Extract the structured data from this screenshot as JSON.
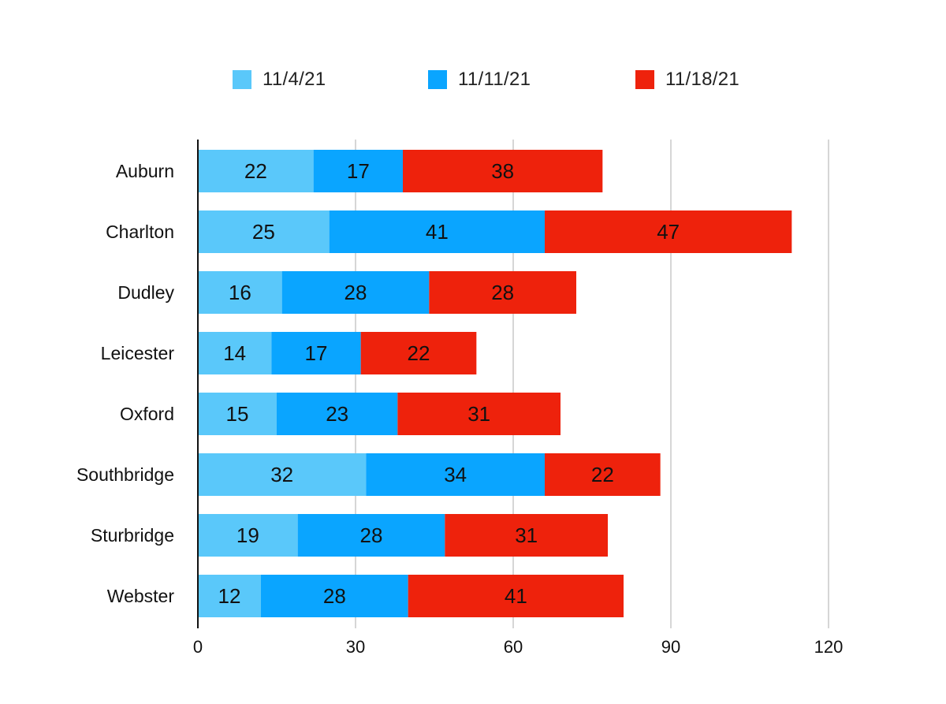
{
  "chart_data": {
    "type": "bar",
    "orientation": "horizontal",
    "stacked": true,
    "categories": [
      "Auburn",
      "Charlton",
      "Dudley",
      "Leicester",
      "Oxford",
      "Southbridge",
      "Sturbridge",
      "Webster"
    ],
    "series": [
      {
        "name": "11/4/21",
        "color": "#5ac8fa",
        "values": [
          22,
          25,
          16,
          14,
          15,
          32,
          19,
          12
        ]
      },
      {
        "name": "11/11/21",
        "color": "#0aa5ff",
        "values": [
          17,
          41,
          28,
          17,
          23,
          34,
          28,
          28
        ]
      },
      {
        "name": "11/18/21",
        "color": "#ee220c",
        "values": [
          38,
          47,
          28,
          22,
          31,
          22,
          31,
          41
        ]
      }
    ],
    "xlim": [
      0,
      120
    ],
    "xticks": [
      "0",
      "30",
      "60",
      "90",
      "120"
    ],
    "grid": true,
    "legend_position": "top"
  }
}
